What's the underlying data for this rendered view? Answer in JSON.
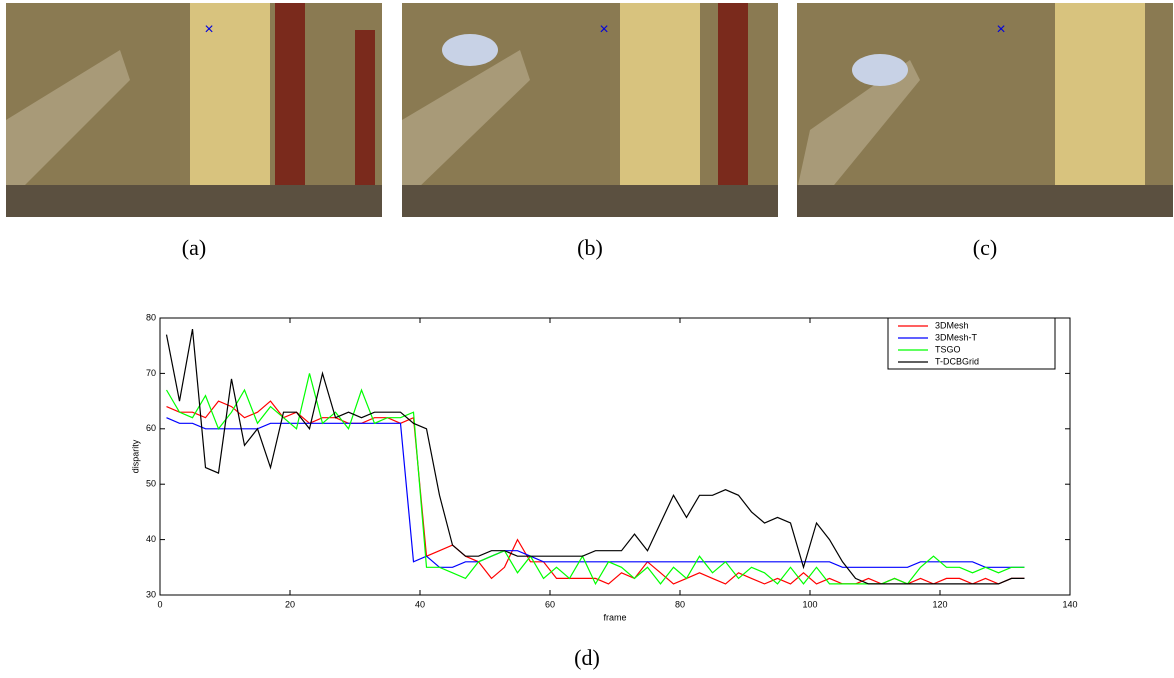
{
  "captions": [
    "(a)",
    "(b)",
    "(c)",
    "(d)"
  ],
  "chart_data": {
    "type": "line",
    "xlabel": "frame",
    "ylabel": "disparity",
    "x": [
      1,
      3,
      5,
      7,
      9,
      11,
      13,
      15,
      17,
      19,
      21,
      23,
      25,
      27,
      29,
      31,
      33,
      35,
      37,
      39,
      41,
      43,
      45,
      47,
      49,
      51,
      53,
      55,
      57,
      59,
      61,
      63,
      65,
      67,
      69,
      71,
      73,
      75,
      77,
      79,
      81,
      83,
      85,
      87,
      89,
      91,
      93,
      95,
      97,
      99,
      101,
      103,
      105,
      107,
      109,
      111,
      113,
      115,
      117,
      119,
      121,
      123,
      125,
      127,
      129,
      131,
      133
    ],
    "xlim": [
      0,
      140
    ],
    "xticks": [
      0,
      20,
      40,
      60,
      80,
      100,
      120,
      140
    ],
    "ylim": [
      30,
      80
    ],
    "yticks": [
      30,
      40,
      50,
      60,
      70,
      80
    ],
    "legend": "upper right",
    "series": [
      {
        "name": "3DMesh",
        "color": "#ff0000",
        "values": [
          64,
          63,
          63,
          62,
          65,
          64,
          62,
          63,
          65,
          62,
          63,
          61,
          62,
          62,
          61,
          61,
          62,
          62,
          61,
          62,
          37,
          38,
          39,
          37,
          36,
          33,
          35,
          40,
          36,
          36,
          33,
          33,
          33,
          33,
          32,
          34,
          33,
          36,
          34,
          32,
          33,
          34,
          33,
          32,
          34,
          33,
          32,
          33,
          32,
          34,
          32,
          33,
          32,
          32,
          33,
          32,
          33,
          32,
          33,
          32,
          33,
          33,
          32,
          33,
          32,
          33,
          33
        ]
      },
      {
        "name": "3DMesh-T",
        "color": "#0000ff",
        "values": [
          62,
          61,
          61,
          60,
          60,
          60,
          60,
          60,
          61,
          61,
          61,
          61,
          61,
          61,
          61,
          61,
          61,
          61,
          61,
          36,
          37,
          35,
          35,
          36,
          36,
          37,
          38,
          38,
          37,
          36,
          36,
          36,
          36,
          36,
          36,
          36,
          36,
          36,
          36,
          36,
          36,
          36,
          36,
          36,
          36,
          36,
          36,
          36,
          36,
          36,
          36,
          36,
          35,
          35,
          35,
          35,
          35,
          35,
          36,
          36,
          36,
          36,
          36,
          35,
          35,
          35,
          35
        ]
      },
      {
        "name": "TSGO",
        "color": "#00ff00",
        "values": [
          67,
          63,
          62,
          66,
          60,
          63,
          67,
          61,
          64,
          62,
          60,
          70,
          61,
          63,
          60,
          67,
          61,
          62,
          62,
          63,
          35,
          35,
          34,
          33,
          36,
          37,
          38,
          34,
          37,
          33,
          35,
          33,
          37,
          32,
          36,
          35,
          33,
          35,
          32,
          35,
          33,
          37,
          34,
          36,
          33,
          35,
          34,
          32,
          35,
          32,
          35,
          32,
          32,
          32,
          32,
          32,
          33,
          32,
          35,
          37,
          35,
          35,
          34,
          35,
          34,
          35,
          35
        ]
      },
      {
        "name": "T-DCBGrid",
        "color": "#000000",
        "values": [
          77,
          65,
          78,
          53,
          52,
          69,
          57,
          60,
          53,
          63,
          63,
          60,
          70,
          62,
          63,
          62,
          63,
          63,
          63,
          61,
          60,
          48,
          39,
          37,
          37,
          38,
          38,
          37,
          37,
          37,
          37,
          37,
          37,
          38,
          38,
          38,
          41,
          38,
          43,
          48,
          44,
          48,
          48,
          49,
          48,
          45,
          43,
          44,
          43,
          35,
          43,
          40,
          36,
          33,
          32,
          32,
          32,
          32,
          32,
          32,
          32,
          32,
          32,
          32,
          32,
          33,
          33
        ]
      }
    ]
  }
}
